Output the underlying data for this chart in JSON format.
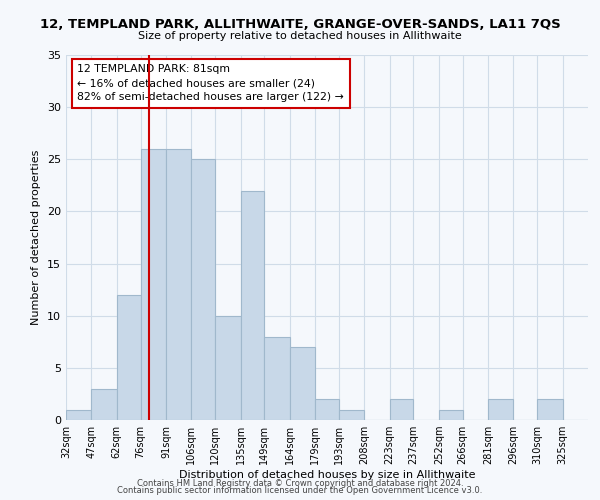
{
  "title": "12, TEMPLAND PARK, ALLITHWAITE, GRANGE-OVER-SANDS, LA11 7QS",
  "subtitle": "Size of property relative to detached houses in Allithwaite",
  "xlabel": "Distribution of detached houses by size in Allithwaite",
  "ylabel": "Number of detached properties",
  "bin_labels": [
    "32sqm",
    "47sqm",
    "62sqm",
    "76sqm",
    "91sqm",
    "106sqm",
    "120sqm",
    "135sqm",
    "149sqm",
    "164sqm",
    "179sqm",
    "193sqm",
    "208sqm",
    "223sqm",
    "237sqm",
    "252sqm",
    "266sqm",
    "281sqm",
    "296sqm",
    "310sqm",
    "325sqm"
  ],
  "bin_edges": [
    32,
    47,
    62,
    76,
    91,
    106,
    120,
    135,
    149,
    164,
    179,
    193,
    208,
    223,
    237,
    252,
    266,
    281,
    296,
    310,
    325,
    340
  ],
  "counts": [
    1,
    3,
    12,
    26,
    26,
    25,
    10,
    22,
    8,
    7,
    2,
    1,
    0,
    2,
    0,
    1,
    0,
    2,
    0,
    2,
    0
  ],
  "bar_color": "#c8d8e8",
  "bar_edge_color": "#a0b8cc",
  "vline_x": 81,
  "vline_color": "#cc0000",
  "annotation_line1": "12 TEMPLAND PARK: 81sqm",
  "annotation_line2": "← 16% of detached houses are smaller (24)",
  "annotation_line3": "82% of semi-detached houses are larger (122) →",
  "annotation_box_edge": "#cc0000",
  "annotation_box_face": "white",
  "ylim": [
    0,
    35
  ],
  "yticks": [
    0,
    5,
    10,
    15,
    20,
    25,
    30,
    35
  ],
  "footer1": "Contains HM Land Registry data © Crown copyright and database right 2024.",
  "footer2": "Contains public sector information licensed under the Open Government Licence v3.0.",
  "bg_color": "#f5f8fc",
  "grid_color": "#d0dce8"
}
